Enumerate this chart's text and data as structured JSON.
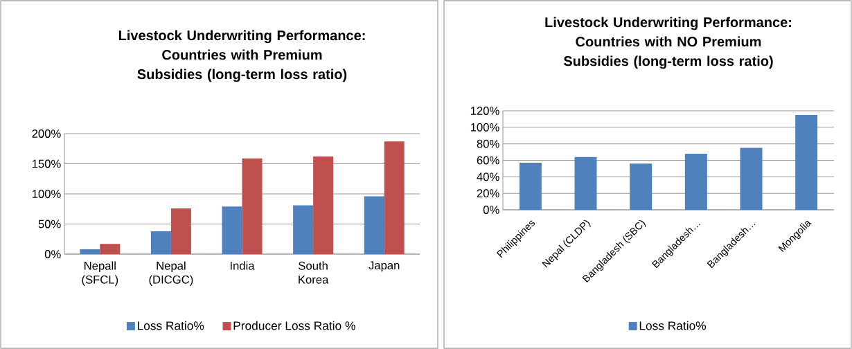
{
  "chart_data": [
    {
      "type": "bar",
      "title": "Livestock Underwriting Performance: Countries with Premium Subsidies (long-term loss ratio)",
      "categories": [
        "Nepall (SFCL)",
        "Nepal (DICGC)",
        "India",
        "South Korea",
        "Japan"
      ],
      "series": [
        {
          "name": "Loss Ratio%",
          "color": "#4f81bd",
          "values": [
            8,
            38,
            79,
            81,
            96
          ]
        },
        {
          "name": "Producer Loss Ratio %",
          "color": "#c0504d",
          "values": [
            17,
            76,
            159,
            162,
            187
          ]
        }
      ],
      "ylim": [
        0,
        200
      ],
      "yticks": [
        {
          "value": 0,
          "label": "0%"
        },
        {
          "value": 50,
          "label": "50%"
        },
        {
          "value": 100,
          "label": "100%"
        },
        {
          "value": 150,
          "label": "150%"
        },
        {
          "value": 200,
          "label": "200%"
        }
      ],
      "grid": "y",
      "legend": "bottom"
    },
    {
      "type": "bar",
      "title": "Livestock Underwriting Performance: Countries with NO Premium Subsidies (long-term loss ratio)",
      "categories": [
        "Philippines",
        "Nepal (CLDP)",
        "Bangladesh (SBC)",
        "Bangladesh…",
        "Bangladesh…",
        "Mongolia"
      ],
      "series": [
        {
          "name": "Loss Ratio%",
          "color": "#4f81bd",
          "values": [
            57,
            64,
            56,
            68,
            75,
            115
          ]
        }
      ],
      "ylim": [
        0,
        120
      ],
      "yticks": [
        {
          "value": 0,
          "label": "0%"
        },
        {
          "value": 20,
          "label": "20%"
        },
        {
          "value": 40,
          "label": "40%"
        },
        {
          "value": 60,
          "label": "60%"
        },
        {
          "value": 80,
          "label": "80%"
        },
        {
          "value": 100,
          "label": "100%"
        },
        {
          "value": 120,
          "label": "120%"
        }
      ],
      "grid": "y",
      "legend": "bottom"
    }
  ]
}
